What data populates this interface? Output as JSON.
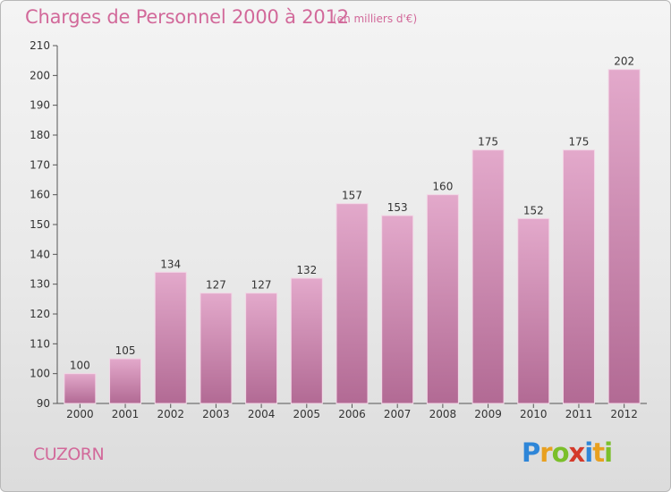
{
  "title": "Charges de Personnel 2000 à 2012",
  "subtitle": "(en milliers d'€)",
  "place": "CUZORN",
  "logo": {
    "letters": [
      "P",
      "r",
      "o",
      "x",
      "i",
      "t",
      "i"
    ],
    "colors": [
      "#2e86d8",
      "#e8a020",
      "#7bbf2a",
      "#d43a2a",
      "#2e86d8",
      "#e8a020",
      "#7bbf2a"
    ]
  },
  "colors": {
    "bar": "#d98cbb",
    "title": "#d2699a"
  },
  "chart_data": {
    "type": "bar",
    "title": "Charges de Personnel 2000 à 2012",
    "subtitle": "(en milliers d'€)",
    "categories": [
      "2000",
      "2001",
      "2002",
      "2003",
      "2004",
      "2005",
      "2006",
      "2007",
      "2008",
      "2009",
      "2010",
      "2011",
      "2012"
    ],
    "values": [
      100,
      105,
      134,
      127,
      127,
      132,
      157,
      153,
      160,
      175,
      152,
      175,
      202
    ],
    "ylim": [
      90,
      210
    ],
    "yticks": [
      "90",
      "100",
      "110",
      "120",
      "130",
      "140",
      "150",
      "160",
      "170",
      "180",
      "190",
      "200",
      "210"
    ],
    "grid": false,
    "legend": "none"
  }
}
